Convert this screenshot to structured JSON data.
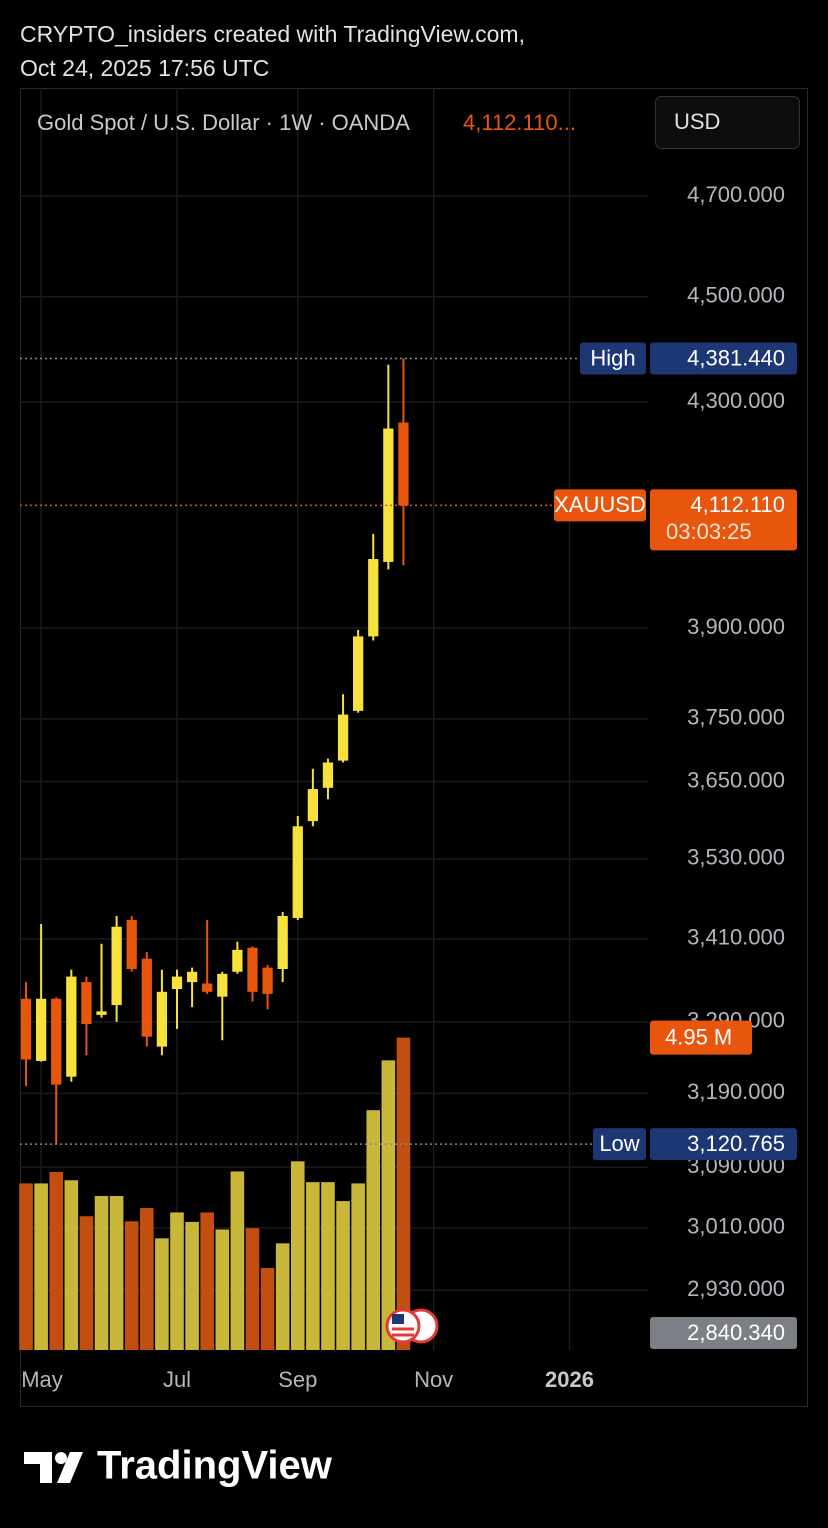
{
  "header": {
    "line1": "CRYPTO_insiders created with TradingView.com,",
    "line2": "Oct 24, 2025 17:56 UTC"
  },
  "chart_data": {
    "type": "candlestick",
    "title": "Gold Spot / U.S. Dollar · 1W · OANDA",
    "last_price_label": "4,112.110...",
    "currency": "USD",
    "log_scale": true,
    "grid": true,
    "colors": {
      "up": "#f7e13c",
      "down": "#e8560e"
    },
    "x": [
      0,
      1,
      2,
      3,
      4,
      5,
      6,
      7,
      8,
      9,
      10,
      11,
      12,
      13,
      14,
      15,
      16,
      17,
      18,
      19,
      20,
      21,
      22,
      23,
      24,
      25
    ],
    "open": [
      3323,
      3235,
      3323,
      3213,
      3347,
      3300,
      3314,
      3438,
      3381,
      3255,
      3337,
      3347,
      3345,
      3326,
      3362,
      3397,
      3368,
      3366,
      3441,
      3588,
      3640,
      3683,
      3763,
      3886,
      4013,
      4262
    ],
    "high": [
      3347,
      3432,
      3325,
      3365,
      3355,
      3403,
      3444,
      3444,
      3391,
      3365,
      3365,
      3368,
      3438,
      3362,
      3406,
      3399,
      3372,
      3450,
      3596,
      3670,
      3686,
      3790,
      3897,
      4062,
      4370,
      4381.44
    ],
    "low": [
      3200,
      3234,
      3120.765,
      3206,
      3243,
      3296,
      3290,
      3362,
      3255,
      3243,
      3280,
      3311,
      3330,
      3264,
      3359,
      3319,
      3308,
      3347,
      3438,
      3580,
      3622,
      3680,
      3760,
      3879,
      4000,
      4007
    ],
    "close": [
      3237,
      3323,
      3202,
      3355,
      3287,
      3305,
      3428,
      3366,
      3269,
      3333,
      3355,
      3362,
      3333,
      3359,
      3394,
      3333,
      3330,
      3444,
      3580,
      3638,
      3680,
      3757,
      3886,
      4018,
      4251,
      4112.11
    ],
    "volume": {
      "values": [
        2640000,
        2640000,
        2820000,
        2690000,
        2120000,
        2440000,
        2440000,
        2040000,
        2250000,
        1770000,
        2180000,
        2030000,
        2180000,
        1910000,
        2830000,
        1930000,
        1300000,
        1690000,
        2990000,
        2660000,
        2660000,
        2360000,
        2640000,
        3800000,
        4590000,
        4950000
      ],
      "value_labels": [
        null,
        null,
        null,
        null,
        null,
        null,
        null,
        null,
        null,
        null,
        null,
        null,
        null,
        null,
        null,
        null,
        null,
        null,
        null,
        null,
        null,
        null,
        null,
        null,
        null,
        "4.95 M"
      ],
      "ylim": [
        0,
        20000000
      ],
      "up_color": "#c9b73a",
      "down_color": "#c24f10"
    },
    "ylim": [
      2855.3,
      4924.5
    ],
    "yticks": [
      {
        "value": 4700,
        "label": "4,700.000"
      },
      {
        "value": 4500,
        "label": "4,500.000"
      },
      {
        "value": 4300,
        "label": "4,300.000"
      },
      {
        "value": 3900,
        "label": "3,900.000"
      },
      {
        "value": 3750,
        "label": "3,750.000"
      },
      {
        "value": 3650,
        "label": "3,650.000"
      },
      {
        "value": 3530,
        "label": "3,530.000"
      },
      {
        "value": 3410,
        "label": "3,410.000"
      },
      {
        "value": 3290,
        "label": "3,290.000"
      },
      {
        "value": 3190,
        "label": "3,190.000"
      },
      {
        "value": 3090,
        "label": "3,090.000"
      },
      {
        "value": 3010,
        "label": "3,010.000"
      },
      {
        "value": 2930,
        "label": "2,930.000"
      }
    ],
    "xlim": [
      -0.4,
      41.2
    ],
    "xticks": [
      {
        "value": 1,
        "label": "May"
      },
      {
        "value": 10,
        "label": "Jul"
      },
      {
        "value": 18,
        "label": "Sep"
      },
      {
        "value": 27,
        "label": "Nov"
      },
      {
        "value": 36,
        "label": "2026"
      }
    ],
    "price_labels": [
      {
        "name": "High",
        "value": 4381.44,
        "label": "4,381.440",
        "color": "#1d3674"
      },
      {
        "name": "XAUUSD",
        "value": 4112.11,
        "label": "4,112.110",
        "countdown": "03:03:25",
        "color": "#e8560e"
      },
      {
        "name": "Low",
        "value": 3120.765,
        "label": "3,120.765",
        "color": "#1d3674"
      },
      {
        "value": 2840.34,
        "label": "2,840.340",
        "color": "#7d7f86"
      }
    ]
  },
  "footer": {
    "brand": "TradingView"
  }
}
